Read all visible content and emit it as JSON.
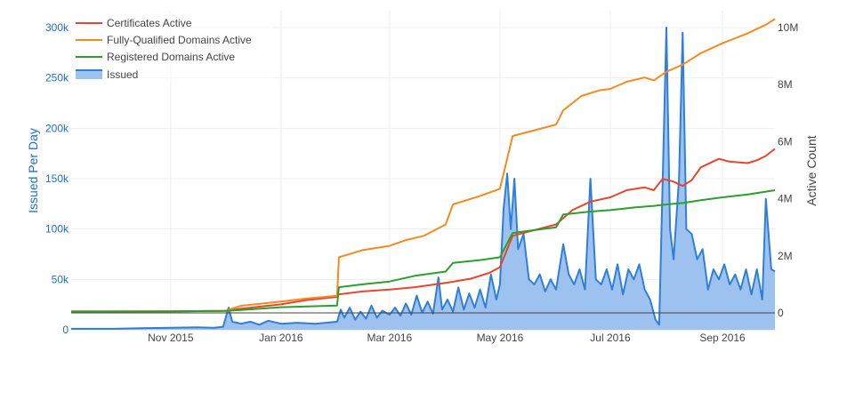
{
  "chart_data": {
    "type": "line",
    "title": "",
    "x_axis": {
      "type": "date",
      "range": [
        "2015-09-07",
        "2016-09-30"
      ],
      "ticks": [
        {
          "date": "2015-11-01",
          "label": "Nov 2015"
        },
        {
          "date": "2016-01-01",
          "label": "Jan 2016"
        },
        {
          "date": "2016-03-01",
          "label": "Mar 2016"
        },
        {
          "date": "2016-05-01",
          "label": "May 2016"
        },
        {
          "date": "2016-07-01",
          "label": "Jul 2016"
        },
        {
          "date": "2016-09-01",
          "label": "Sep 2016"
        }
      ]
    },
    "y_axis_left": {
      "title": "Issued Per Day",
      "range": [
        0,
        300000
      ],
      "ticks": [
        0,
        50000,
        100000,
        150000,
        200000,
        250000,
        300000
      ],
      "tick_labels": [
        "0",
        "50k",
        "100k",
        "150k",
        "200k",
        "250k",
        "300k"
      ],
      "color": "#1f6fd0"
    },
    "y_axis_right": {
      "title": "Active Count",
      "range": [
        -500000,
        10300000
      ],
      "ticks": [
        0,
        2000000,
        4000000,
        6000000,
        8000000,
        10000000
      ],
      "tick_labels": [
        "0",
        "2M",
        "4M",
        "6M",
        "8M",
        "10M"
      ],
      "color": "#444444"
    },
    "grid": true,
    "legend": {
      "position": "top-left",
      "entries": [
        "Certificates Active",
        "Fully-Qualified Domains Active",
        "Registered Domains Active",
        "Issued"
      ]
    },
    "series": [
      {
        "name": "Certificates Active",
        "axis": "right",
        "type": "line",
        "color": "#e8452c",
        "points": [
          [
            "2015-09-07",
            50000
          ],
          [
            "2015-10-01",
            50000
          ],
          [
            "2015-11-01",
            55000
          ],
          [
            "2015-12-01",
            70000
          ],
          [
            "2015-12-10",
            150000
          ],
          [
            "2016-01-01",
            300000
          ],
          [
            "2016-01-15",
            450000
          ],
          [
            "2016-02-01",
            560000
          ],
          [
            "2016-02-02",
            650000
          ],
          [
            "2016-02-15",
            750000
          ],
          [
            "2016-03-01",
            820000
          ],
          [
            "2016-03-15",
            900000
          ],
          [
            "2016-04-01",
            1050000
          ],
          [
            "2016-04-15",
            1200000
          ],
          [
            "2016-04-25",
            1400000
          ],
          [
            "2016-05-01",
            1600000
          ],
          [
            "2016-05-08",
            2700000
          ],
          [
            "2016-05-20",
            2900000
          ],
          [
            "2016-06-01",
            3100000
          ],
          [
            "2016-06-10",
            3600000
          ],
          [
            "2016-06-20",
            3900000
          ],
          [
            "2016-07-01",
            4050000
          ],
          [
            "2016-07-10",
            4300000
          ],
          [
            "2016-07-20",
            4400000
          ],
          [
            "2016-07-25",
            4300000
          ],
          [
            "2016-07-30",
            4700000
          ],
          [
            "2016-08-05",
            4600000
          ],
          [
            "2016-08-10",
            4450000
          ],
          [
            "2016-08-15",
            4650000
          ],
          [
            "2016-08-20",
            5100000
          ],
          [
            "2016-08-30",
            5400000
          ],
          [
            "2016-09-05",
            5300000
          ],
          [
            "2016-09-15",
            5250000
          ],
          [
            "2016-09-20",
            5350000
          ],
          [
            "2016-09-25",
            5500000
          ],
          [
            "2016-09-30",
            5750000
          ]
        ]
      },
      {
        "name": "Fully-Qualified Domains Active",
        "axis": "right",
        "type": "line",
        "color": "#f58a1f",
        "points": [
          [
            "2015-09-07",
            50000
          ],
          [
            "2015-10-01",
            50000
          ],
          [
            "2015-11-01",
            55000
          ],
          [
            "2015-12-01",
            70000
          ],
          [
            "2015-12-10",
            250000
          ],
          [
            "2016-01-01",
            400000
          ],
          [
            "2016-01-15",
            500000
          ],
          [
            "2016-02-01",
            600000
          ],
          [
            "2016-02-02",
            1950000
          ],
          [
            "2016-02-15",
            2200000
          ],
          [
            "2016-03-01",
            2350000
          ],
          [
            "2016-03-10",
            2550000
          ],
          [
            "2016-03-20",
            2700000
          ],
          [
            "2016-04-01",
            3100000
          ],
          [
            "2016-04-05",
            3800000
          ],
          [
            "2016-04-20",
            4100000
          ],
          [
            "2016-05-01",
            4350000
          ],
          [
            "2016-05-08",
            6200000
          ],
          [
            "2016-05-20",
            6400000
          ],
          [
            "2016-06-01",
            6600000
          ],
          [
            "2016-06-05",
            7100000
          ],
          [
            "2016-06-15",
            7600000
          ],
          [
            "2016-06-25",
            7800000
          ],
          [
            "2016-07-01",
            7850000
          ],
          [
            "2016-07-10",
            8100000
          ],
          [
            "2016-07-20",
            8250000
          ],
          [
            "2016-07-25",
            8150000
          ],
          [
            "2016-08-01",
            8450000
          ],
          [
            "2016-08-10",
            8700000
          ],
          [
            "2016-08-20",
            9100000
          ],
          [
            "2016-09-01",
            9450000
          ],
          [
            "2016-09-15",
            9800000
          ],
          [
            "2016-09-25",
            10100000
          ],
          [
            "2016-09-30",
            10300000
          ]
        ]
      },
      {
        "name": "Registered Domains Active",
        "axis": "right",
        "type": "line",
        "color": "#2ca02c",
        "points": [
          [
            "2015-09-07",
            50000
          ],
          [
            "2015-10-01",
            50000
          ],
          [
            "2015-11-01",
            55000
          ],
          [
            "2015-12-01",
            70000
          ],
          [
            "2015-12-10",
            100000
          ],
          [
            "2016-01-01",
            200000
          ],
          [
            "2016-02-01",
            260000
          ],
          [
            "2016-02-02",
            900000
          ],
          [
            "2016-02-15",
            1000000
          ],
          [
            "2016-03-01",
            1100000
          ],
          [
            "2016-03-15",
            1300000
          ],
          [
            "2016-04-01",
            1450000
          ],
          [
            "2016-04-05",
            1750000
          ],
          [
            "2016-04-20",
            1850000
          ],
          [
            "2016-05-01",
            1950000
          ],
          [
            "2016-05-08",
            2800000
          ],
          [
            "2016-05-20",
            2900000
          ],
          [
            "2016-06-01",
            3000000
          ],
          [
            "2016-06-05",
            3450000
          ],
          [
            "2016-06-20",
            3550000
          ],
          [
            "2016-07-01",
            3600000
          ],
          [
            "2016-07-15",
            3700000
          ],
          [
            "2016-07-25",
            3750000
          ],
          [
            "2016-08-01",
            3800000
          ],
          [
            "2016-08-10",
            3850000
          ],
          [
            "2016-08-20",
            3950000
          ],
          [
            "2016-09-01",
            4050000
          ],
          [
            "2016-09-15",
            4150000
          ],
          [
            "2016-09-25",
            4250000
          ],
          [
            "2016-09-30",
            4300000
          ]
        ]
      },
      {
        "name": "Issued",
        "axis": "left",
        "type": "area",
        "color": "#2f7fd8",
        "fill": "#9dc2ef",
        "points": [
          [
            "2015-09-07",
            1000
          ],
          [
            "2015-10-01",
            1000
          ],
          [
            "2015-10-15",
            1500
          ],
          [
            "2015-11-01",
            2000
          ],
          [
            "2015-11-15",
            2500
          ],
          [
            "2015-11-25",
            2000
          ],
          [
            "2015-11-30",
            3000
          ],
          [
            "2015-12-03",
            22000
          ],
          [
            "2015-12-05",
            8000
          ],
          [
            "2015-12-10",
            6000
          ],
          [
            "2015-12-15",
            8000
          ],
          [
            "2015-12-20",
            5000
          ],
          [
            "2015-12-25",
            9000
          ],
          [
            "2016-01-01",
            6000
          ],
          [
            "2016-01-10",
            7000
          ],
          [
            "2016-01-20",
            6000
          ],
          [
            "2016-02-01",
            8000
          ],
          [
            "2016-02-03",
            20000
          ],
          [
            "2016-02-05",
            12000
          ],
          [
            "2016-02-08",
            22000
          ],
          [
            "2016-02-11",
            10000
          ],
          [
            "2016-02-14",
            18000
          ],
          [
            "2016-02-17",
            11000
          ],
          [
            "2016-02-20",
            24000
          ],
          [
            "2016-02-23",
            12000
          ],
          [
            "2016-02-26",
            19000
          ],
          [
            "2016-03-01",
            15000
          ],
          [
            "2016-03-04",
            22000
          ],
          [
            "2016-03-07",
            14000
          ],
          [
            "2016-03-10",
            26000
          ],
          [
            "2016-03-13",
            15000
          ],
          [
            "2016-03-16",
            34000
          ],
          [
            "2016-03-19",
            17000
          ],
          [
            "2016-03-22",
            28000
          ],
          [
            "2016-03-25",
            16000
          ],
          [
            "2016-03-28",
            52000
          ],
          [
            "2016-03-30",
            20000
          ],
          [
            "2016-04-02",
            30000
          ],
          [
            "2016-04-05",
            18000
          ],
          [
            "2016-04-08",
            42000
          ],
          [
            "2016-04-11",
            20000
          ],
          [
            "2016-04-14",
            36000
          ],
          [
            "2016-04-17",
            22000
          ],
          [
            "2016-04-20",
            40000
          ],
          [
            "2016-04-23",
            22000
          ],
          [
            "2016-04-26",
            55000
          ],
          [
            "2016-04-29",
            30000
          ],
          [
            "2016-05-01",
            45000
          ],
          [
            "2016-05-03",
            120000
          ],
          [
            "2016-05-05",
            155000
          ],
          [
            "2016-05-07",
            100000
          ],
          [
            "2016-05-09",
            150000
          ],
          [
            "2016-05-11",
            80000
          ],
          [
            "2016-05-14",
            95000
          ],
          [
            "2016-05-17",
            50000
          ],
          [
            "2016-05-20",
            45000
          ],
          [
            "2016-05-23",
            55000
          ],
          [
            "2016-05-26",
            38000
          ],
          [
            "2016-05-29",
            50000
          ],
          [
            "2016-06-01",
            40000
          ],
          [
            "2016-06-05",
            85000
          ],
          [
            "2016-06-08",
            55000
          ],
          [
            "2016-06-11",
            45000
          ],
          [
            "2016-06-14",
            60000
          ],
          [
            "2016-06-17",
            40000
          ],
          [
            "2016-06-20",
            150000
          ],
          [
            "2016-06-23",
            50000
          ],
          [
            "2016-06-26",
            45000
          ],
          [
            "2016-06-29",
            60000
          ],
          [
            "2016-07-02",
            40000
          ],
          [
            "2016-07-05",
            65000
          ],
          [
            "2016-07-08",
            35000
          ],
          [
            "2016-07-11",
            60000
          ],
          [
            "2016-07-14",
            50000
          ],
          [
            "2016-07-17",
            65000
          ],
          [
            "2016-07-20",
            40000
          ],
          [
            "2016-07-23",
            30000
          ],
          [
            "2016-07-26",
            10000
          ],
          [
            "2016-07-28",
            5000
          ],
          [
            "2016-08-01",
            300000
          ],
          [
            "2016-08-03",
            100000
          ],
          [
            "2016-08-05",
            70000
          ],
          [
            "2016-08-08",
            150000
          ],
          [
            "2016-08-10",
            295000
          ],
          [
            "2016-08-12",
            100000
          ],
          [
            "2016-08-15",
            95000
          ],
          [
            "2016-08-18",
            70000
          ],
          [
            "2016-08-21",
            80000
          ],
          [
            "2016-08-24",
            40000
          ],
          [
            "2016-08-27",
            60000
          ],
          [
            "2016-08-30",
            50000
          ],
          [
            "2016-09-02",
            65000
          ],
          [
            "2016-09-05",
            45000
          ],
          [
            "2016-09-08",
            55000
          ],
          [
            "2016-09-11",
            40000
          ],
          [
            "2016-09-14",
            60000
          ],
          [
            "2016-09-17",
            35000
          ],
          [
            "2016-09-20",
            60000
          ],
          [
            "2016-09-23",
            30000
          ],
          [
            "2016-09-25",
            130000
          ],
          [
            "2016-09-28",
            60000
          ],
          [
            "2016-09-30",
            58000
          ]
        ]
      }
    ]
  }
}
